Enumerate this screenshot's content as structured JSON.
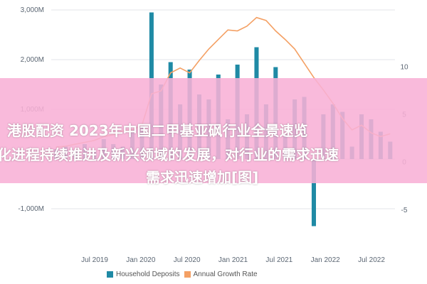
{
  "overlay": {
    "line1": "港股配资 2023年中国二甲基亚砜行业全景速览",
    "line2": "化进程持续推进及新兴领域的发展，对行业的需求迅速",
    "line3": "需求迅速增加[图]"
  },
  "chart_data": {
    "type": "bar+line",
    "x_tick_labels": [
      "Jul 2019",
      "Jan 2020",
      "Jul 2020",
      "Jan 2021",
      "Jul 2021",
      "Jan 2022",
      "Jul 2022"
    ],
    "left_axis": {
      "ticks": [
        "3,000M",
        "2,000M",
        "1,000M",
        "-1,000M"
      ],
      "ylim": [
        -1600,
        3000
      ]
    },
    "right_axis": {
      "ticks": [
        "10",
        "5",
        "0",
        "-5"
      ],
      "ylim": [
        -8,
        16
      ]
    },
    "series": [
      {
        "name": "Household Deposits",
        "type": "bar",
        "color": "#1f8aa5",
        "values": [
          200,
          250,
          180,
          300,
          150,
          400,
          300,
          250,
          600,
          700,
          2950,
          1500,
          1950,
          1100,
          1800,
          1300,
          1200,
          1700,
          800,
          1900,
          900,
          2250,
          1100,
          1850,
          500,
          1200,
          1250,
          -1350,
          900,
          1100,
          950,
          250,
          900,
          800,
          550,
          350
        ]
      },
      {
        "name": "Annual Growth Rate",
        "type": "line",
        "color": "#f4a064",
        "values": [
          1.6,
          1.7,
          1.9,
          2.1,
          2.3,
          2.7,
          2.9,
          3.3,
          3.4,
          3.9,
          7.2,
          7.5,
          9.4,
          9.9,
          9.4,
          10.7,
          11.9,
          12.9,
          13.9,
          13.8,
          14.3,
          15.2,
          14.9,
          13.8,
          12.9,
          11.9,
          10.4,
          8.9,
          7.6,
          6.2,
          4.6,
          3.4,
          3.9,
          3.1,
          2.7,
          3.0
        ]
      }
    ],
    "legend": "bottom-center",
    "grid": true
  }
}
